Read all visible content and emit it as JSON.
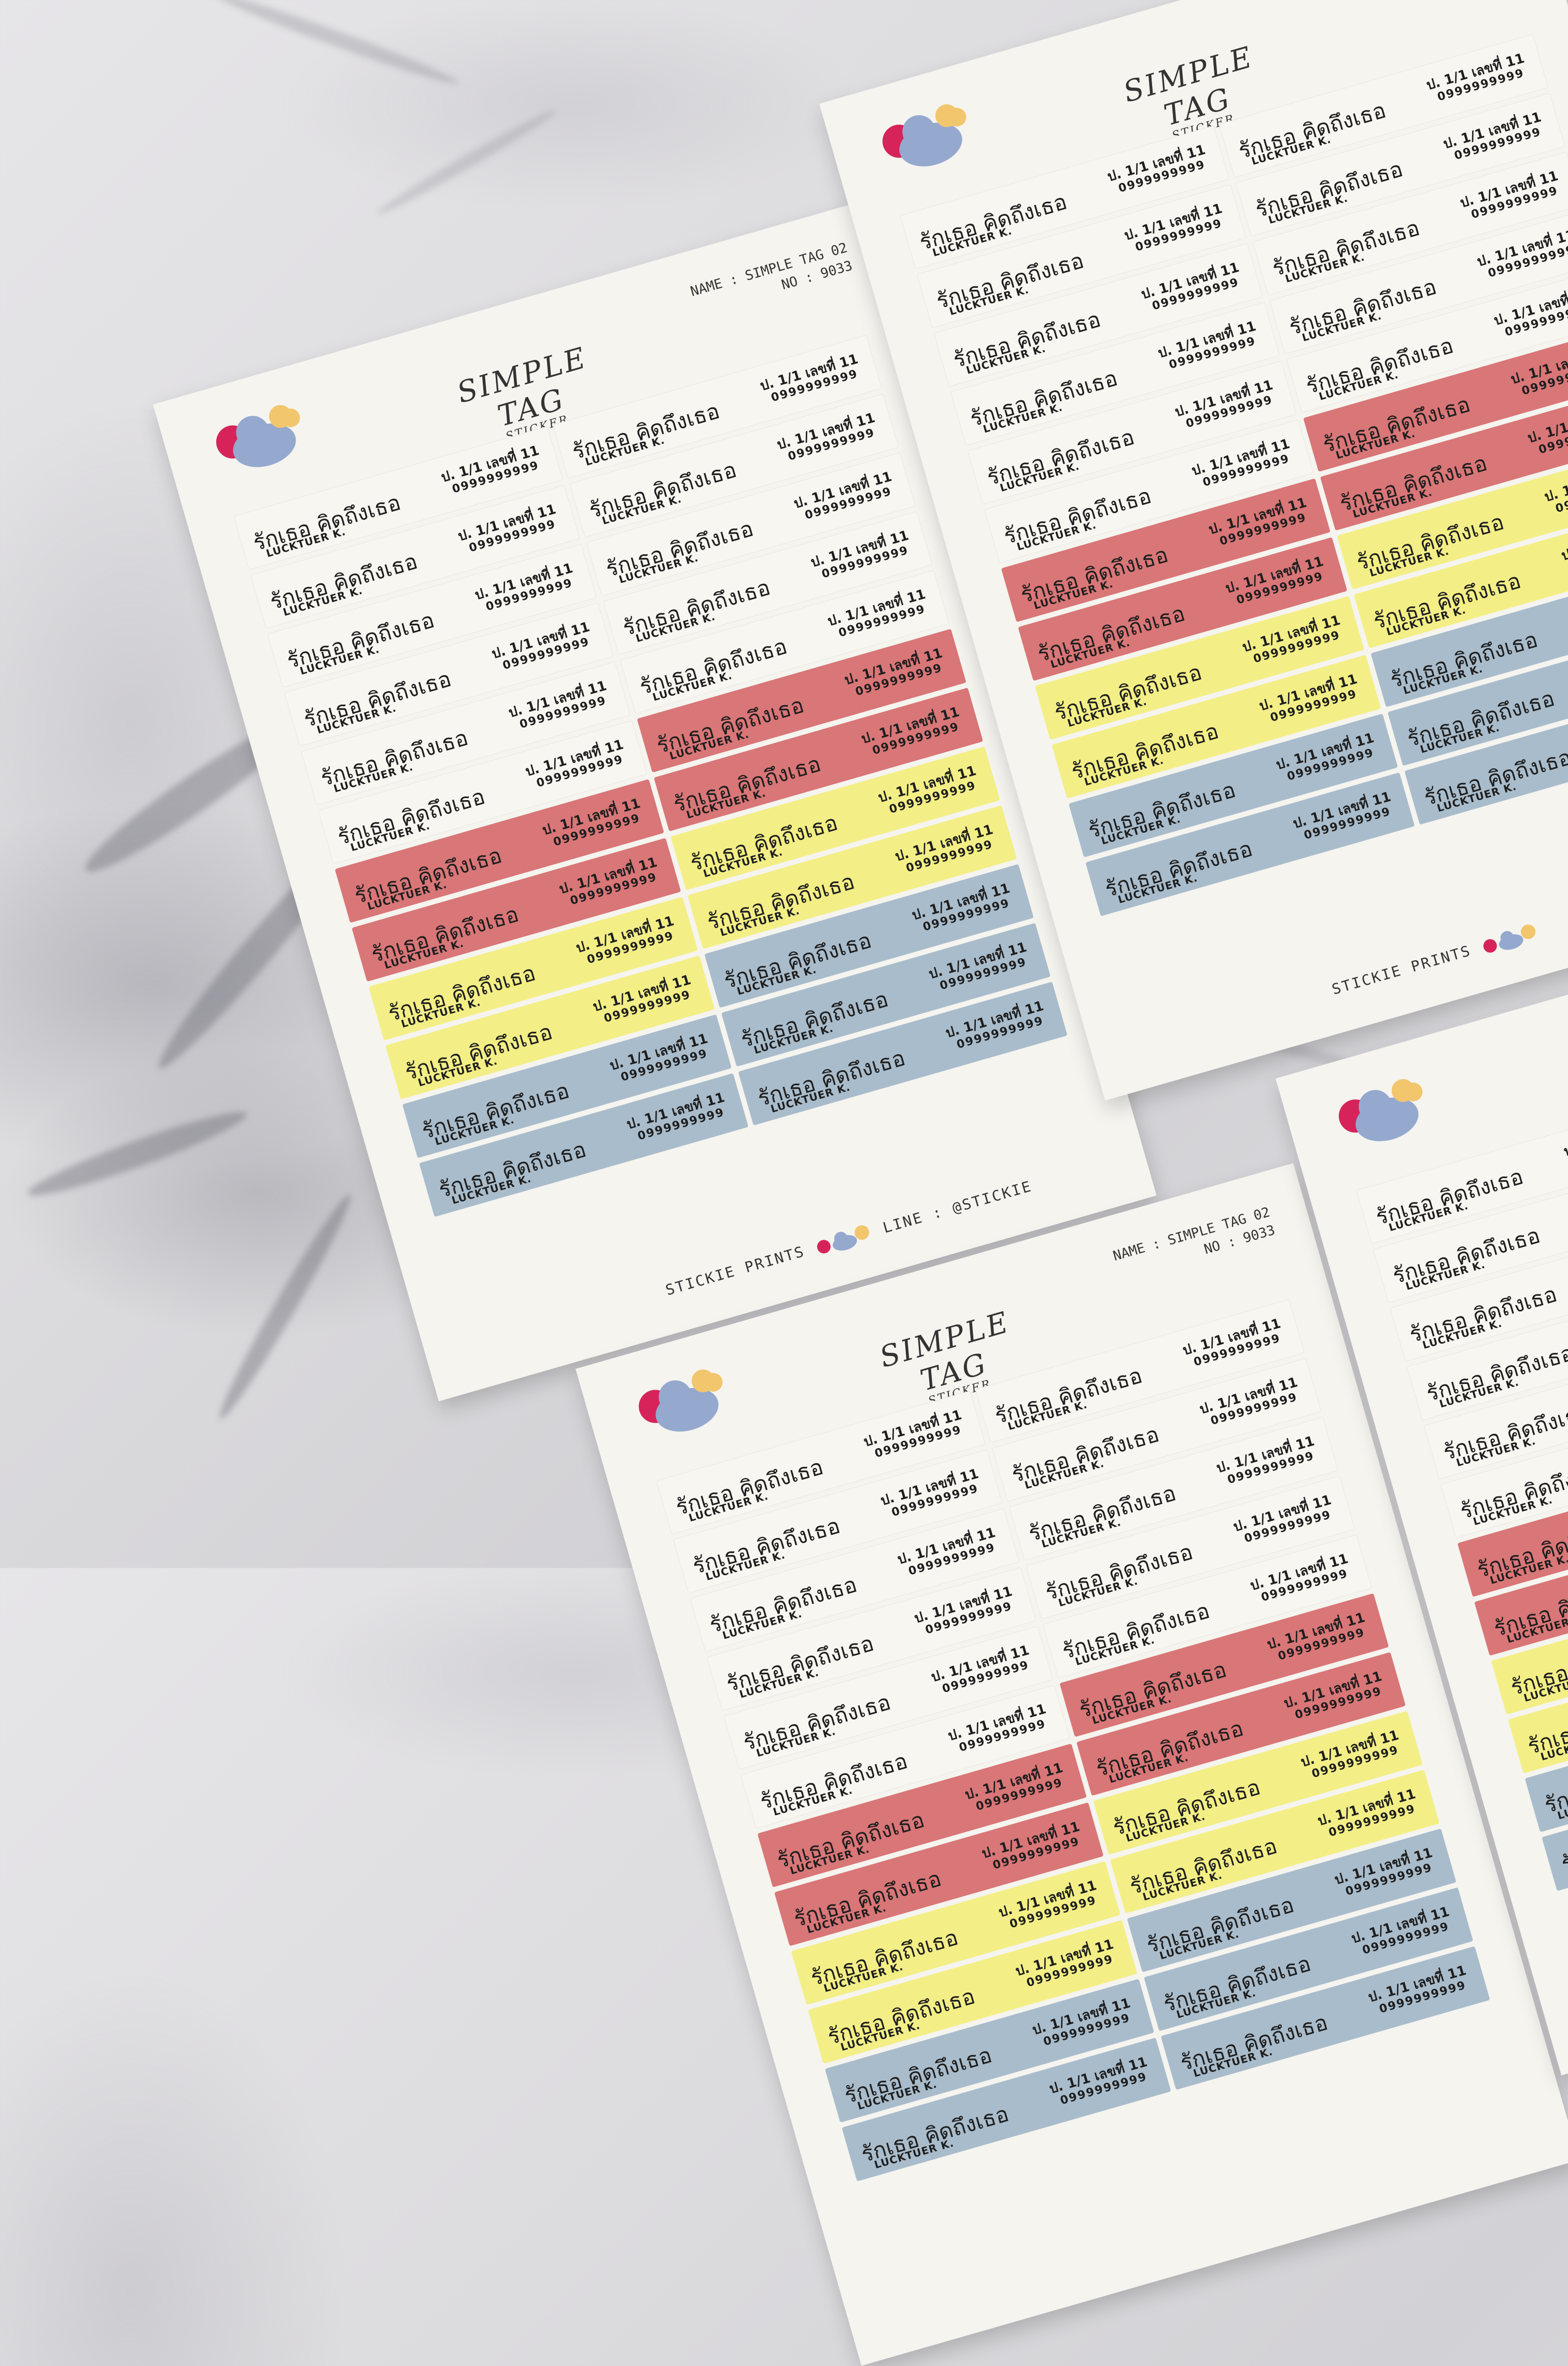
{
  "sheet": {
    "title": "SIMPLE TAG",
    "subtitle": "STICKER",
    "name_line": "NAME : SIMPLE TAG 02",
    "no_line": "NO : 9033",
    "brand": "STICKIE PRINTS",
    "line_id": "LINE : @STICKIE"
  },
  "tag": {
    "name": "รักเธอ คิดถึงเธอ",
    "sub": "LUCKTUER K.",
    "class_no": "ป. 1/1 เลขที่ 11",
    "phone": "0999999999"
  },
  "colors": {
    "red": "#d97677",
    "yellow": "#f3ef86",
    "blue": "#a9bccb",
    "logo_pink": "#d6245a",
    "logo_blue": "#95a9cf",
    "logo_yellow": "#f2c66c"
  }
}
